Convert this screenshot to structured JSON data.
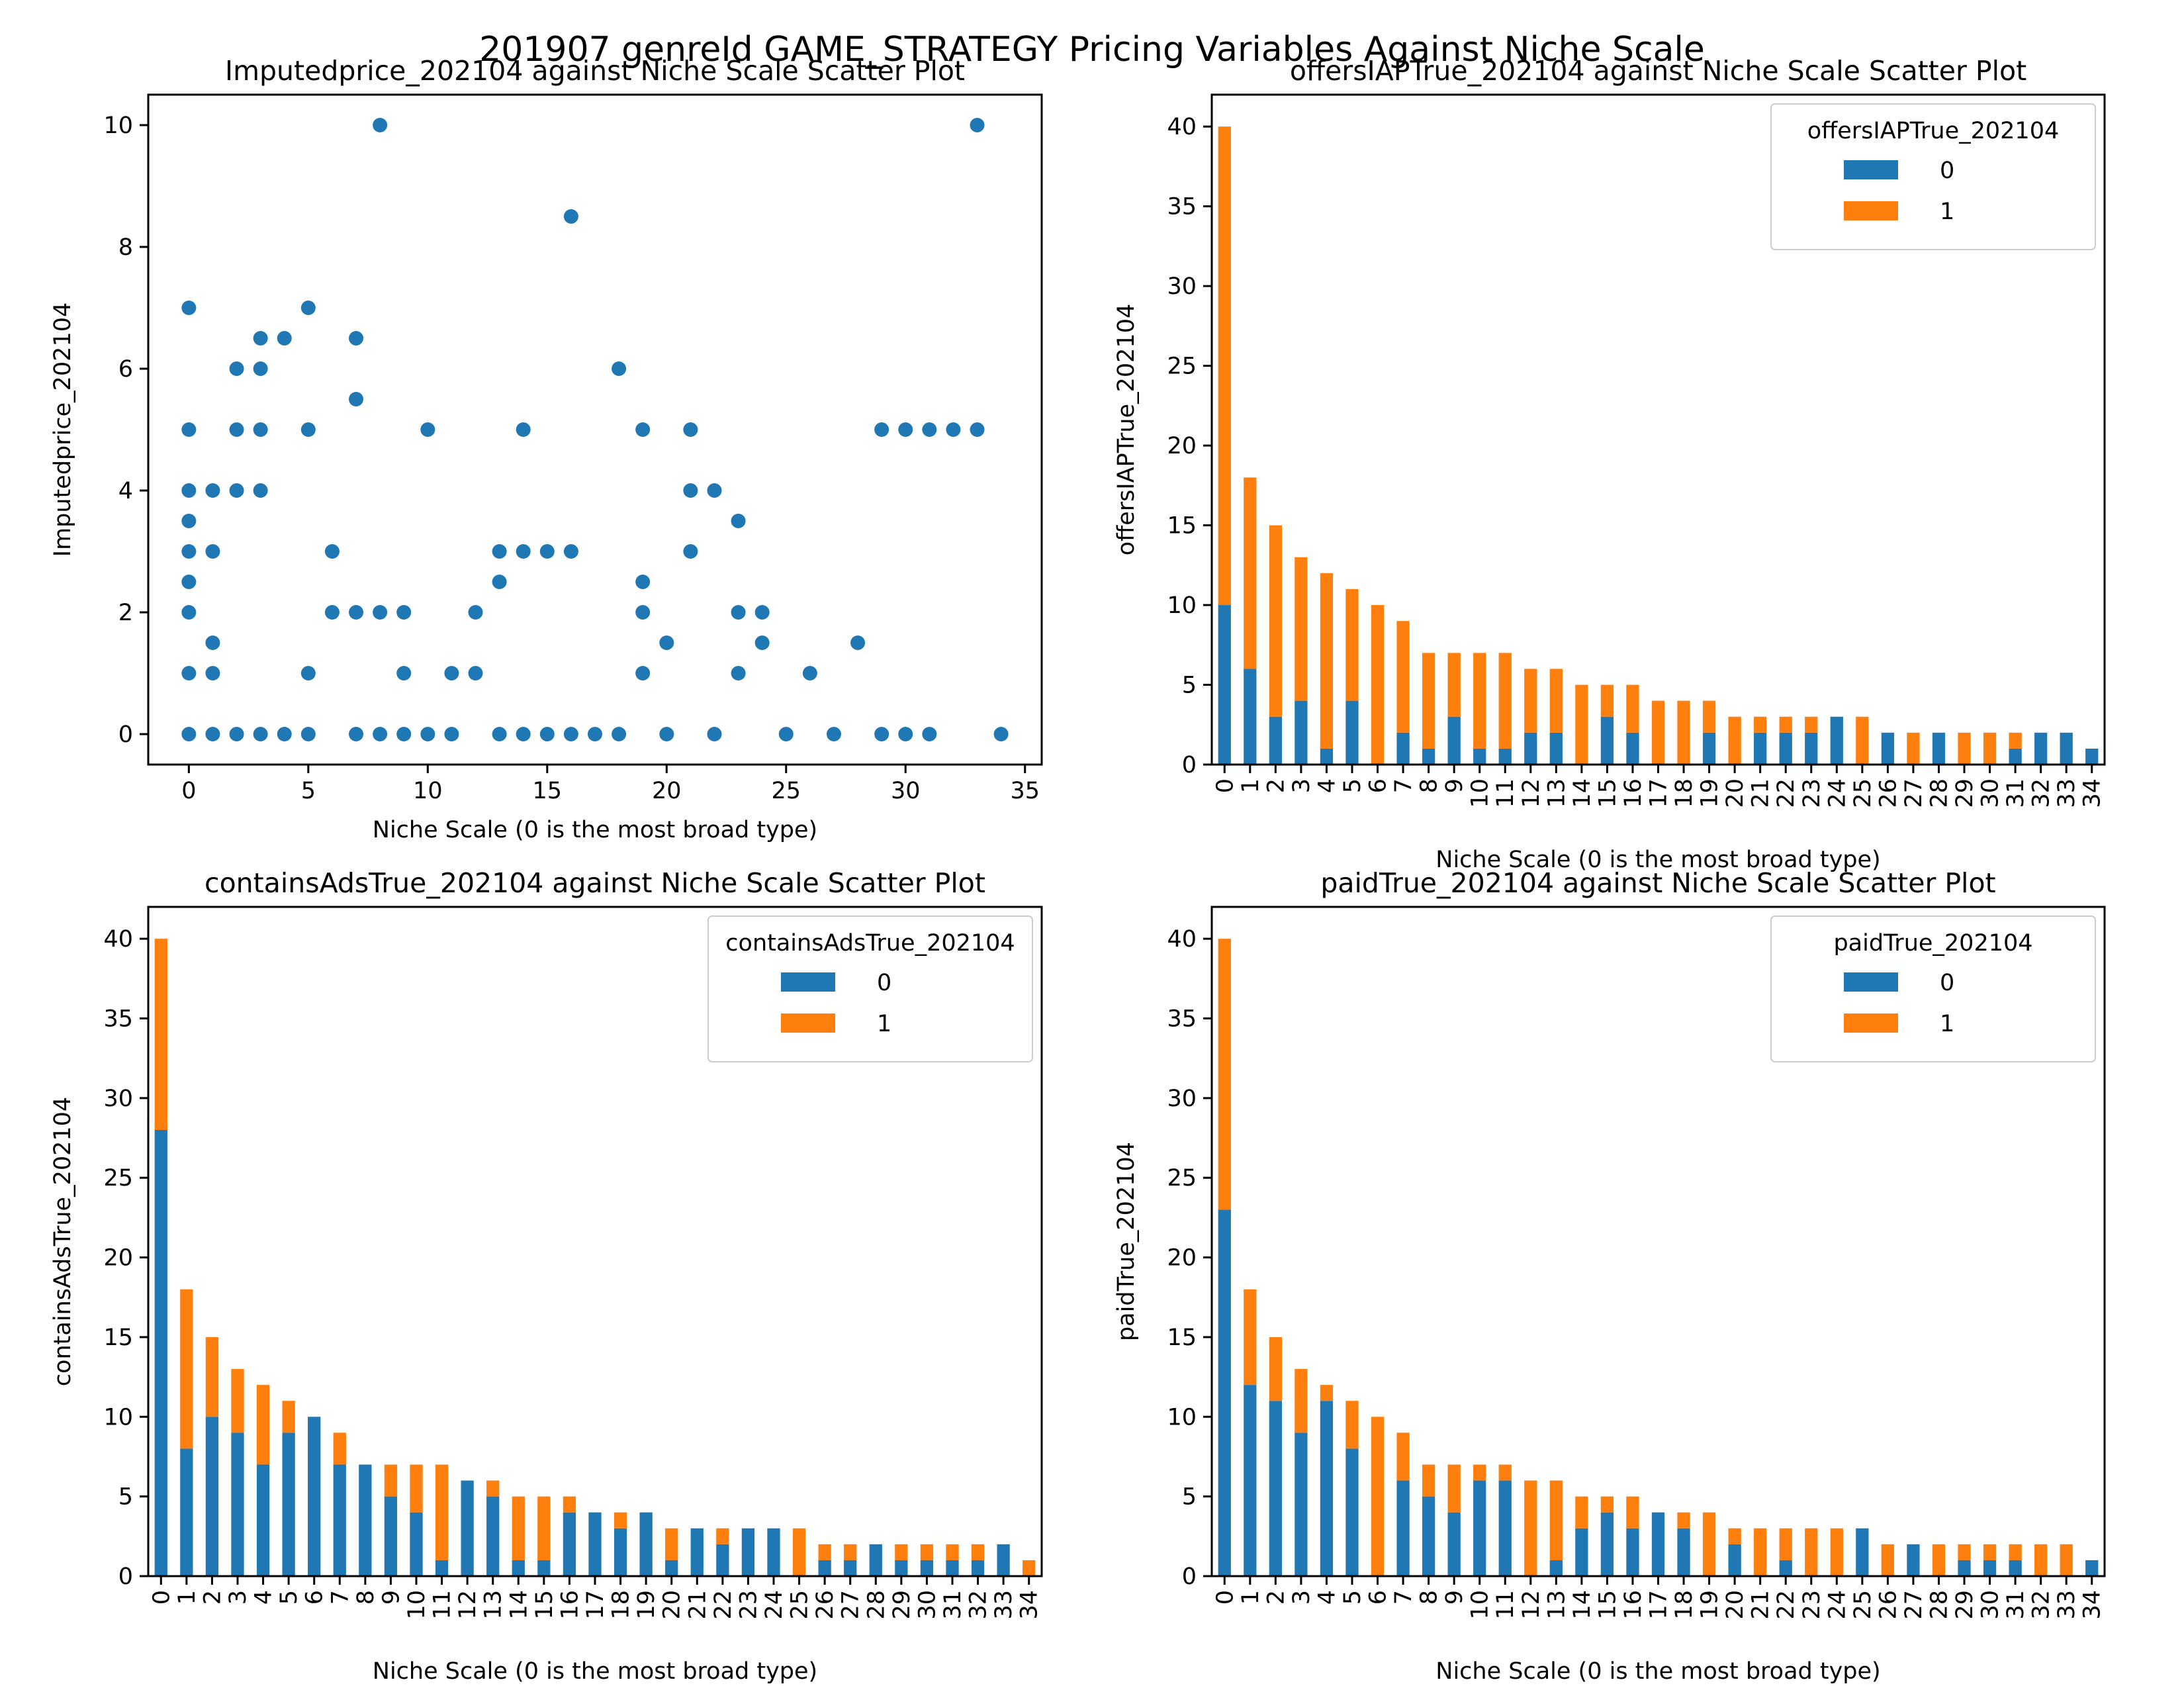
{
  "figure_title": "201907 genreId GAME_STRATEGY Pricing Variables Against Niche Scale",
  "colors": {
    "series0": "#1f77b4",
    "series1": "#ff7f0e"
  },
  "chart_data": [
    {
      "type": "scatter",
      "title": "Imputedprice_202104 against Niche Scale Scatter Plot",
      "xlabel": "Niche Scale (0 is the most broad type)",
      "ylabel": "Imputedprice_202104",
      "xlim": [
        -1.7,
        35.7
      ],
      "ylim": [
        -0.5,
        10.5
      ],
      "xticks": [
        0,
        5,
        10,
        15,
        20,
        25,
        30,
        35
      ],
      "yticks": [
        0,
        2,
        4,
        6,
        8,
        10
      ],
      "points": [
        [
          0,
          0
        ],
        [
          0,
          1
        ],
        [
          0,
          2
        ],
        [
          0,
          2.5
        ],
        [
          0,
          3
        ],
        [
          0,
          3.5
        ],
        [
          0,
          4
        ],
        [
          0,
          5
        ],
        [
          0,
          7
        ],
        [
          1,
          0
        ],
        [
          1,
          1
        ],
        [
          1,
          1.5
        ],
        [
          1,
          3
        ],
        [
          1,
          4
        ],
        [
          2,
          0
        ],
        [
          2,
          4
        ],
        [
          2,
          5
        ],
        [
          2,
          6
        ],
        [
          3,
          0
        ],
        [
          3,
          4
        ],
        [
          3,
          5
        ],
        [
          3,
          6
        ],
        [
          3,
          6.5
        ],
        [
          4,
          0
        ],
        [
          4,
          6.5
        ],
        [
          5,
          0
        ],
        [
          5,
          1
        ],
        [
          5,
          5
        ],
        [
          5,
          7
        ],
        [
          6,
          2
        ],
        [
          6,
          3
        ],
        [
          7,
          0
        ],
        [
          7,
          2
        ],
        [
          7,
          5.5
        ],
        [
          7,
          6.5
        ],
        [
          8,
          0
        ],
        [
          8,
          2
        ],
        [
          8,
          10
        ],
        [
          9,
          0
        ],
        [
          9,
          1
        ],
        [
          9,
          2
        ],
        [
          10,
          0
        ],
        [
          10,
          5
        ],
        [
          11,
          0
        ],
        [
          11,
          1
        ],
        [
          12,
          1
        ],
        [
          12,
          2
        ],
        [
          13,
          0
        ],
        [
          13,
          2.5
        ],
        [
          13,
          3
        ],
        [
          14,
          0
        ],
        [
          14,
          3
        ],
        [
          14,
          5
        ],
        [
          15,
          0
        ],
        [
          15,
          3
        ],
        [
          16,
          0
        ],
        [
          16,
          3
        ],
        [
          16,
          8.5
        ],
        [
          17,
          0
        ],
        [
          18,
          0
        ],
        [
          18,
          6
        ],
        [
          19,
          1
        ],
        [
          19,
          2
        ],
        [
          19,
          2.5
        ],
        [
          19,
          5
        ],
        [
          20,
          0
        ],
        [
          20,
          1.5
        ],
        [
          21,
          3
        ],
        [
          21,
          4
        ],
        [
          21,
          5
        ],
        [
          22,
          0
        ],
        [
          22,
          4
        ],
        [
          23,
          1
        ],
        [
          23,
          2
        ],
        [
          23,
          3.5
        ],
        [
          24,
          1.5
        ],
        [
          24,
          2
        ],
        [
          25,
          0
        ],
        [
          26,
          1
        ],
        [
          27,
          0
        ],
        [
          28,
          1.5
        ],
        [
          29,
          0
        ],
        [
          29,
          5
        ],
        [
          30,
          0
        ],
        [
          30,
          5
        ],
        [
          31,
          0
        ],
        [
          31,
          5
        ],
        [
          32,
          5
        ],
        [
          33,
          5
        ],
        [
          33,
          10
        ],
        [
          34,
          0
        ]
      ]
    },
    {
      "type": "bar",
      "stacked": true,
      "title": "offersIAPTrue_202104 against Niche Scale Scatter Plot",
      "xlabel": "Niche Scale (0 is the most broad type)",
      "ylabel": "offersIAPTrue_202104",
      "legend_title": "offersIAPTrue_202104",
      "legend_position": "upper right",
      "ylim": [
        0,
        42
      ],
      "yticks": [
        0,
        5,
        10,
        15,
        20,
        25,
        30,
        35,
        40
      ],
      "categories": [
        "0",
        "1",
        "2",
        "3",
        "4",
        "5",
        "6",
        "7",
        "8",
        "9",
        "10",
        "11",
        "12",
        "13",
        "14",
        "15",
        "16",
        "17",
        "18",
        "19",
        "20",
        "21",
        "22",
        "23",
        "24",
        "25",
        "26",
        "27",
        "28",
        "29",
        "30",
        "31",
        "32",
        "33",
        "34"
      ],
      "series": [
        {
          "name": "0",
          "values": [
            10,
            6,
            3,
            4,
            1,
            4,
            0,
            2,
            1,
            3,
            1,
            1,
            2,
            2,
            0,
            3,
            2,
            0,
            0,
            2,
            0,
            2,
            2,
            2,
            3,
            0,
            2,
            0,
            2,
            0,
            0,
            1,
            2,
            2,
            1
          ]
        },
        {
          "name": "1",
          "values": [
            30,
            12,
            12,
            9,
            11,
            7,
            10,
            7,
            6,
            4,
            6,
            6,
            4,
            4,
            5,
            2,
            3,
            4,
            4,
            2,
            3,
            1,
            1,
            1,
            0,
            3,
            0,
            2,
            0,
            2,
            2,
            1,
            0,
            0,
            0
          ]
        }
      ]
    },
    {
      "type": "bar",
      "stacked": true,
      "title": "containsAdsTrue_202104 against Niche Scale Scatter Plot",
      "xlabel": "Niche Scale (0 is the most broad type)",
      "ylabel": "containsAdsTrue_202104",
      "legend_title": "containsAdsTrue_202104",
      "legend_position": "upper right",
      "ylim": [
        0,
        42
      ],
      "yticks": [
        0,
        5,
        10,
        15,
        20,
        25,
        30,
        35,
        40
      ],
      "categories": [
        "0",
        "1",
        "2",
        "3",
        "4",
        "5",
        "6",
        "7",
        "8",
        "9",
        "10",
        "11",
        "12",
        "13",
        "14",
        "15",
        "16",
        "17",
        "18",
        "19",
        "20",
        "21",
        "22",
        "23",
        "24",
        "25",
        "26",
        "27",
        "28",
        "29",
        "30",
        "31",
        "32",
        "33",
        "34"
      ],
      "series": [
        {
          "name": "0",
          "values": [
            28,
            8,
            10,
            9,
            7,
            9,
            10,
            7,
            7,
            5,
            4,
            1,
            6,
            5,
            1,
            1,
            4,
            4,
            3,
            4,
            1,
            3,
            2,
            3,
            3,
            0,
            1,
            1,
            2,
            1,
            1,
            1,
            1,
            2,
            0
          ]
        },
        {
          "name": "1",
          "values": [
            12,
            10,
            5,
            4,
            5,
            2,
            0,
            2,
            0,
            2,
            3,
            6,
            0,
            1,
            4,
            4,
            1,
            0,
            1,
            0,
            2,
            0,
            1,
            0,
            0,
            3,
            1,
            1,
            0,
            1,
            1,
            1,
            1,
            0,
            1
          ]
        }
      ]
    },
    {
      "type": "bar",
      "stacked": true,
      "title": "paidTrue_202104 against Niche Scale Scatter Plot",
      "xlabel": "Niche Scale (0 is the most broad type)",
      "ylabel": "paidTrue_202104",
      "legend_title": "paidTrue_202104",
      "legend_position": "upper right",
      "ylim": [
        0,
        42
      ],
      "yticks": [
        0,
        5,
        10,
        15,
        20,
        25,
        30,
        35,
        40
      ],
      "categories": [
        "0",
        "1",
        "2",
        "3",
        "4",
        "5",
        "6",
        "7",
        "8",
        "9",
        "10",
        "11",
        "12",
        "13",
        "14",
        "15",
        "16",
        "17",
        "18",
        "19",
        "20",
        "21",
        "22",
        "23",
        "24",
        "25",
        "26",
        "27",
        "28",
        "29",
        "30",
        "31",
        "32",
        "33",
        "34"
      ],
      "series": [
        {
          "name": "0",
          "values": [
            23,
            12,
            11,
            9,
            11,
            8,
            0,
            6,
            5,
            4,
            6,
            6,
            0,
            1,
            3,
            4,
            3,
            4,
            3,
            0,
            2,
            0,
            1,
            0,
            0,
            3,
            0,
            2,
            0,
            1,
            1,
            1,
            0,
            0,
            1
          ]
        },
        {
          "name": "1",
          "values": [
            17,
            6,
            4,
            4,
            1,
            3,
            10,
            3,
            2,
            3,
            1,
            1,
            6,
            5,
            2,
            1,
            2,
            0,
            1,
            4,
            1,
            3,
            2,
            3,
            3,
            0,
            2,
            0,
            2,
            1,
            1,
            1,
            2,
            2,
            0
          ]
        }
      ]
    }
  ]
}
